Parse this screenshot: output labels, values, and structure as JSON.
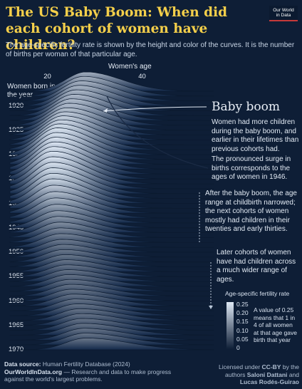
{
  "header": {
    "title": "The US Baby Boom: When did each cohort of women have children?",
    "subtitle": "The age-specific fertility rate is shown by the height and color of the curves. It is the number of births per woman of that particular age.",
    "logo_line1": "Our World",
    "logo_line2": "in Data"
  },
  "annotations": {
    "baby_boom_title": "Baby boom",
    "baby_boom_text": "Women had more children during the baby boom, and earlier in their lifetimes than previous cohorts had.",
    "surge_text": "The pronounced surge in births corresponds to the ages of women in 1946.",
    "after_text": "After the baby boom, the age range at childbirth narrowed; the next cohorts of women mostly had children in their twenties and early thirties.",
    "later_text": "Later cohorts of women have had children across a much wider range of ages."
  },
  "legend": {
    "title": "Age-specific fertility rate",
    "ticks": [
      "0.25",
      "0.20",
      "0.15",
      "0.10",
      "0.05",
      "0"
    ],
    "note": "A value of 0.25 means that 1 in 4 of all women at that age gave birth that year",
    "color_low": "#0e1e36",
    "color_high": "#dfe9f5"
  },
  "footer": {
    "source_label": "Data source:",
    "source_value": "Human Fertility Database (2024)",
    "site": "OurWorldInData.org",
    "tagline": "— Research and data to make progress against the world's largest problems.",
    "license_prefix": "Licensed under",
    "license_name": "CC-BY",
    "license_by": "by the authors",
    "author1": "Saloni Dattani",
    "author_join": "and",
    "author2": "Lucas Rodés-Guirao"
  },
  "chart_data": {
    "type": "area",
    "xlabel": "Women's age",
    "ylabel": "Women born in the year",
    "x_ticks": [
      20,
      30,
      40
    ],
    "y_ticks": [
      1920,
      1925,
      1930,
      1935,
      1940,
      1945,
      1950,
      1955,
      1960,
      1965,
      1970
    ],
    "xlim": [
      12,
      55
    ],
    "ylim": [
      1917,
      1970
    ],
    "value_range": [
      0,
      0.25
    ],
    "peak_age_by_cohort": [
      {
        "cohort": 1917,
        "peak_age": 28,
        "peak_rate": 0.18
      },
      {
        "cohort": 1925,
        "peak_age": 24,
        "peak_rate": 0.21
      },
      {
        "cohort": 1930,
        "peak_age": 22,
        "peak_rate": 0.25
      },
      {
        "cohort": 1935,
        "peak_age": 21,
        "peak_rate": 0.26
      },
      {
        "cohort": 1940,
        "peak_age": 21,
        "peak_rate": 0.23
      },
      {
        "cohort": 1945,
        "peak_age": 22,
        "peak_rate": 0.16
      },
      {
        "cohort": 1950,
        "peak_age": 23,
        "peak_rate": 0.12
      },
      {
        "cohort": 1955,
        "peak_age": 24,
        "peak_rate": 0.11
      },
      {
        "cohort": 1960,
        "peak_age": 25,
        "peak_rate": 0.11
      },
      {
        "cohort": 1965,
        "peak_age": 27,
        "peak_rate": 0.11
      },
      {
        "cohort": 1970,
        "peak_age": 28,
        "peak_rate": 0.11
      }
    ],
    "grid": false,
    "legend": "bottom-right"
  }
}
